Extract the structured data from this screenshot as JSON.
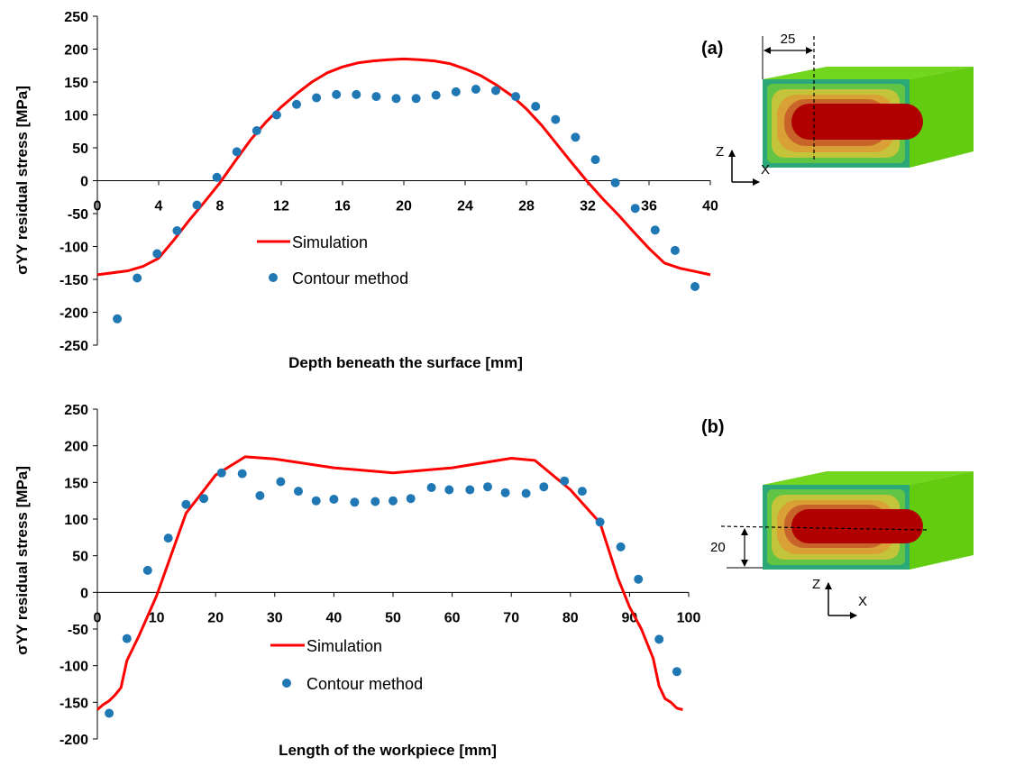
{
  "chart_data": [
    {
      "type": "line",
      "panel": "(a)",
      "xlabel": "Depth beneath the surface [mm]",
      "ylabel": "σYY residual stress [MPa]",
      "xlim": [
        0,
        40
      ],
      "ylim": [
        -250,
        250
      ],
      "x_ticks": [
        0,
        4,
        8,
        12,
        16,
        20,
        24,
        28,
        32,
        36,
        40
      ],
      "y_ticks": [
        250,
        200,
        150,
        100,
        50,
        0,
        -50,
        -100,
        -150,
        -200,
        -250
      ],
      "grid": false,
      "legend_position": "center-left",
      "series": [
        {
          "name": "Simulation",
          "kind": "line",
          "color": "#ff0000",
          "x": [
            0,
            2,
            3,
            4,
            5,
            6,
            7,
            8,
            9,
            10,
            11,
            12,
            13,
            14,
            15,
            16,
            17,
            18,
            19,
            20,
            21,
            22,
            23,
            24,
            25,
            26,
            27,
            28,
            29,
            30,
            31,
            32,
            33,
            34,
            35,
            36,
            37,
            38,
            39,
            40
          ],
          "y": [
            -143,
            -137,
            -130,
            -118,
            -90,
            -60,
            -32,
            -3,
            30,
            62,
            89,
            112,
            132,
            150,
            164,
            173,
            179,
            182,
            184,
            185,
            184,
            182,
            178,
            170,
            160,
            146,
            130,
            109,
            84,
            55,
            26,
            -2,
            -28,
            -52,
            -78,
            -103,
            -125,
            -133,
            -138,
            -143
          ]
        },
        {
          "name": "Contour method",
          "kind": "scatter",
          "color": "#1f77b4",
          "x": [
            1.3,
            2.6,
            3.9,
            5.2,
            6.5,
            7.8,
            9.1,
            10.4,
            11.7,
            13.0,
            14.3,
            15.6,
            16.9,
            18.2,
            19.5,
            20.8,
            22.1,
            23.4,
            24.7,
            26.0,
            27.3,
            28.6,
            29.9,
            31.2,
            32.5,
            33.8,
            35.1,
            36.4,
            37.7,
            39.0
          ],
          "y": [
            -210,
            -148,
            -111,
            -76,
            -37,
            5,
            44,
            76,
            100,
            116,
            126,
            131,
            131,
            128,
            125,
            125,
            130,
            135,
            139,
            137,
            128,
            113,
            93,
            66,
            32,
            -3,
            -42,
            -75,
            -106,
            -161
          ]
        }
      ],
      "inset": {
        "label": "(a)",
        "dimension": "25",
        "axes": [
          "Z",
          "X"
        ]
      }
    },
    {
      "type": "line",
      "panel": "(b)",
      "xlabel": "Length of the workpiece [mm]",
      "ylabel": "σYY residual stress [MPa]",
      "xlim": [
        0,
        100
      ],
      "ylim": [
        -200,
        250
      ],
      "x_ticks": [
        0,
        10,
        20,
        30,
        40,
        50,
        60,
        70,
        80,
        90,
        100
      ],
      "y_ticks": [
        250,
        200,
        150,
        100,
        50,
        0,
        -50,
        -100,
        -150,
        -200
      ],
      "grid": false,
      "legend_position": "bottom-left",
      "series": [
        {
          "name": "Simulation",
          "kind": "line",
          "color": "#ff0000",
          "x": [
            0,
            1,
            2,
            3,
            4,
            5,
            7,
            10,
            15,
            20,
            25,
            30,
            40,
            50,
            60,
            70,
            74,
            80,
            85,
            88,
            90,
            92,
            94,
            95,
            96,
            97,
            98,
            99
          ],
          "y": [
            -160,
            -153,
            -148,
            -140,
            -130,
            -93,
            -60,
            -5,
            108,
            160,
            185,
            182,
            170,
            163,
            170,
            183,
            180,
            140,
            95,
            20,
            -20,
            -50,
            -90,
            -128,
            -145,
            -150,
            -158,
            -160
          ]
        },
        {
          "name": "Contour method",
          "kind": "scatter",
          "color": "#1f77b4",
          "x": [
            2,
            5,
            8.5,
            12,
            15,
            18,
            21,
            24.5,
            27.5,
            31,
            34,
            37,
            40,
            43.5,
            47,
            50,
            53,
            56.5,
            59.5,
            63,
            66,
            69,
            72.5,
            75.5,
            79,
            82,
            85,
            88.5,
            91.5,
            95,
            98
          ],
          "y": [
            -165,
            -63,
            30,
            74,
            120,
            128,
            163,
            162,
            132,
            151,
            138,
            125,
            127,
            123,
            124,
            125,
            128,
            143,
            140,
            140,
            144,
            136,
            135,
            144,
            152,
            138,
            96,
            62,
            18,
            -64,
            -108
          ]
        }
      ],
      "inset": {
        "label": "(b)",
        "dimension": "20",
        "axes": [
          "Z",
          "X"
        ]
      }
    }
  ]
}
